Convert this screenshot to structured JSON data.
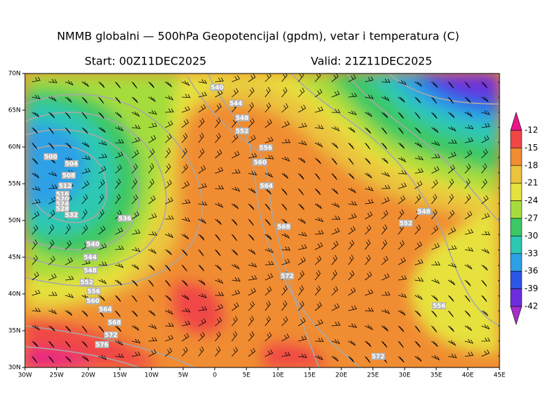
{
  "header": {
    "title": "NMMB globalni — 500hPa Geopotencijal (gpdm), vetar i temperatura (C)",
    "start": "Start: 00Z11DEC2025",
    "valid": "Valid: 21Z11DEC2025"
  },
  "axes": {
    "lat_labels": [
      "70N",
      "65N",
      "60N",
      "55N",
      "50N",
      "45N",
      "40N",
      "35N",
      "30N"
    ],
    "lon_labels": [
      "30W",
      "25W",
      "20W",
      "15W",
      "10W",
      "5W",
      "0",
      "5E",
      "10E",
      "15E",
      "20E",
      "25E",
      "30E",
      "35E",
      "40E",
      "45E"
    ]
  },
  "colorbar": {
    "levels": [
      -12,
      -15,
      -18,
      -21,
      -24,
      -27,
      -30,
      -33,
      -36,
      -39,
      -42
    ],
    "colors": [
      "#e8148c",
      "#f04646",
      "#f08c32",
      "#ebc33c",
      "#e6e13c",
      "#a5dc3c",
      "#3cc864",
      "#2dc8b4",
      "#2da0e6",
      "#2d55e6",
      "#6e2ddc",
      "#a52dc8"
    ]
  },
  "contours": {
    "labels": [
      "540",
      "544",
      "548",
      "552",
      "556",
      "560",
      "564",
      "568",
      "572",
      "572",
      "500",
      "504",
      "508",
      "512",
      "516",
      "520",
      "524",
      "528",
      "532",
      "536",
      "540",
      "544",
      "548",
      "552",
      "556",
      "560",
      "564",
      "568",
      "572",
      "576",
      "548",
      "552",
      "556"
    ]
  }
}
